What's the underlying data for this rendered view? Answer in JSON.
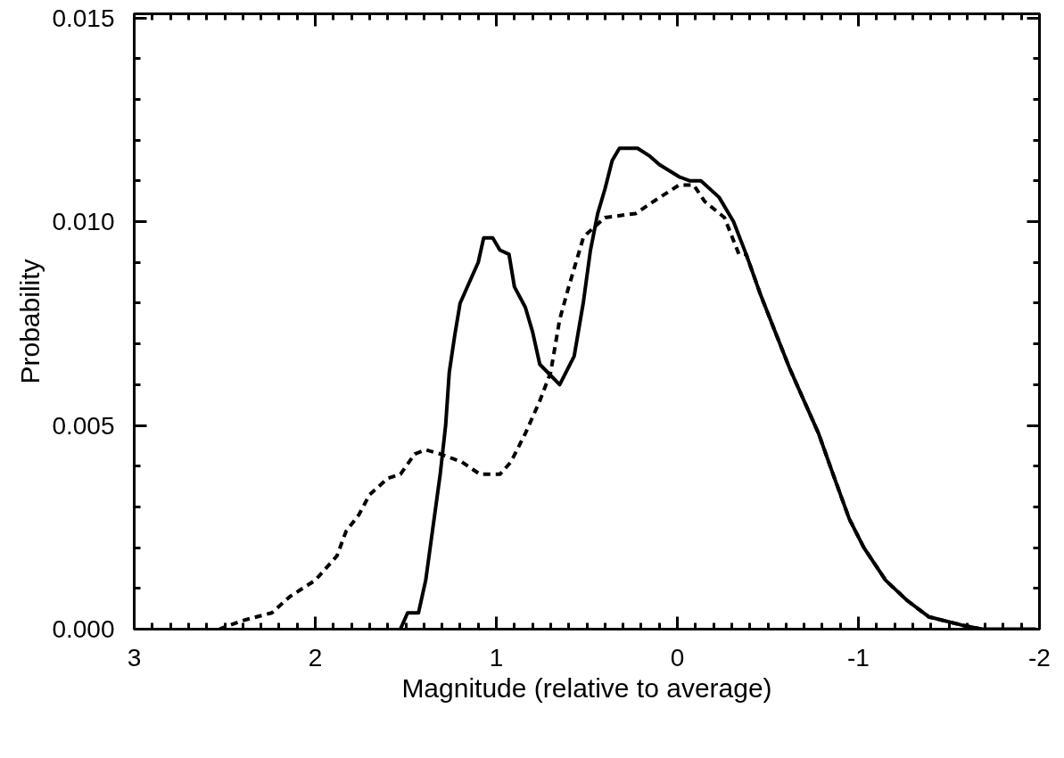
{
  "chart_data": {
    "type": "line",
    "xlabel": "Magnitude (relative to average)",
    "ylabel": "Probability",
    "xlim": [
      3,
      -2
    ],
    "ylim": [
      0,
      0.0151
    ],
    "xticks": [
      3,
      2,
      1,
      0,
      -1,
      -2
    ],
    "yticks": [
      {
        "value": 0,
        "label": "0.000"
      },
      {
        "value": 0.005,
        "label": "0.005"
      },
      {
        "value": 0.01,
        "label": "0.010"
      },
      {
        "value": 0.015,
        "label": "0.015"
      }
    ],
    "grid": false,
    "marker": "none",
    "series": [
      {
        "color": "#000000",
        "line_style": "solid",
        "x": [
          1.53,
          1.49,
          1.43,
          1.39,
          1.35,
          1.31,
          1.28,
          1.26,
          1.23,
          1.2,
          1.14,
          1.1,
          1.07,
          1.02,
          0.98,
          0.93,
          0.9,
          0.84,
          0.8,
          0.76,
          0.65,
          0.57,
          0.52,
          0.48,
          0.44,
          0.4,
          0.36,
          0.32,
          0.22,
          0.15,
          0.1,
          -0.01,
          -0.07,
          -0.13,
          -0.23,
          -0.31,
          -0.38,
          -0.46,
          -0.54,
          -0.62,
          -0.7,
          -0.78,
          -0.86,
          -0.95,
          -1.03,
          -1.15,
          -1.27,
          -1.39,
          -1.57,
          -1.68,
          -1.98
        ],
        "values": [
          0,
          0.0004,
          0.0004,
          0.0012,
          0.0025,
          0.0038,
          0.005,
          0.0063,
          0.0072,
          0.008,
          0.0086,
          0.009,
          0.0096,
          0.0096,
          0.0093,
          0.0092,
          0.0084,
          0.0079,
          0.0073,
          0.0065,
          0.006,
          0.0067,
          0.008,
          0.0093,
          0.0102,
          0.0108,
          0.0115,
          0.0118,
          0.0118,
          0.0116,
          0.0114,
          0.0111,
          0.011,
          0.011,
          0.0106,
          0.01,
          0.0092,
          0.0082,
          0.0073,
          0.0064,
          0.0056,
          0.0048,
          0.0038,
          0.0027,
          0.002,
          0.0012,
          0.0007,
          0.0003,
          0.0001,
          0,
          0
        ]
      },
      {
        "color": "#000000",
        "line_style": "dashed",
        "x": [
          2.53,
          2.41,
          2.24,
          2.14,
          2.0,
          1.88,
          1.83,
          1.76,
          1.7,
          1.6,
          1.53,
          1.45,
          1.39,
          1.31,
          1.19,
          1.09,
          0.98,
          0.92,
          0.84,
          0.76,
          0.7,
          0.65,
          0.6,
          0.52,
          0.5,
          0.4,
          0.23,
          0.13,
          -0.01,
          -0.09,
          -0.15,
          -0.26,
          -0.34,
          -0.38,
          -0.46,
          -0.54,
          -0.62,
          -0.7,
          -0.78,
          -0.86,
          -0.95,
          -1.03,
          -1.15,
          -1.27,
          -1.39,
          -1.57,
          -1.68
        ],
        "values": [
          0,
          0.0002,
          0.0004,
          0.0008,
          0.0012,
          0.0018,
          0.0024,
          0.0028,
          0.0033,
          0.0037,
          0.0038,
          0.0043,
          0.0044,
          0.0043,
          0.0041,
          0.0038,
          0.0038,
          0.0041,
          0.0048,
          0.0056,
          0.0063,
          0.0076,
          0.0084,
          0.0096,
          0.0097,
          0.0101,
          0.0102,
          0.0105,
          0.0109,
          0.0109,
          0.0105,
          0.0101,
          0.0092,
          0.0092,
          0.0082,
          0.0073,
          0.0064,
          0.0056,
          0.0048,
          0.0038,
          0.0027,
          0.002,
          0.0012,
          0.0007,
          0.0003,
          0.0001,
          0
        ]
      }
    ]
  }
}
